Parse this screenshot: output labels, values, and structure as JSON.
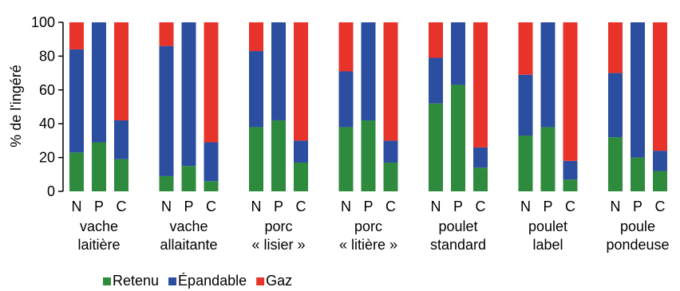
{
  "chart_data": {
    "type": "bar",
    "stacked": true,
    "ylabel": "% de l'ingéré",
    "ylim": [
      0,
      100
    ],
    "yticks": [
      0,
      20,
      40,
      60,
      80,
      100
    ],
    "series_names": [
      "Retenu",
      "Épandable",
      "Gaz"
    ],
    "colors": {
      "Retenu": "#2e8b3e",
      "Épandable": "#2b4ea0",
      "Gaz": "#e8332a"
    },
    "legend_position": "bottom-left",
    "bar_labels": [
      "N",
      "P",
      "C"
    ],
    "groups": [
      {
        "label": [
          "vache",
          "laitière"
        ],
        "bars": [
          {
            "label": "N",
            "Retenu": 23,
            "Épandable": 61,
            "Gaz": 16
          },
          {
            "label": "P",
            "Retenu": 29,
            "Épandable": 71,
            "Gaz": 0
          },
          {
            "label": "C",
            "Retenu": 19,
            "Épandable": 23,
            "Gaz": 58
          }
        ]
      },
      {
        "label": [
          "vache",
          "allaitante"
        ],
        "bars": [
          {
            "label": "N",
            "Retenu": 9,
            "Épandable": 77,
            "Gaz": 14
          },
          {
            "label": "P",
            "Retenu": 15,
            "Épandable": 85,
            "Gaz": 0
          },
          {
            "label": "C",
            "Retenu": 6,
            "Épandable": 23,
            "Gaz": 71
          }
        ]
      },
      {
        "label": [
          "porc",
          "« lisier »"
        ],
        "bars": [
          {
            "label": "N",
            "Retenu": 38,
            "Épandable": 45,
            "Gaz": 17
          },
          {
            "label": "P",
            "Retenu": 42,
            "Épandable": 58,
            "Gaz": 0
          },
          {
            "label": "C",
            "Retenu": 17,
            "Épandable": 13,
            "Gaz": 70
          }
        ]
      },
      {
        "label": [
          "porc",
          "« litière »"
        ],
        "bars": [
          {
            "label": "N",
            "Retenu": 38,
            "Épandable": 33,
            "Gaz": 29
          },
          {
            "label": "P",
            "Retenu": 42,
            "Épandable": 58,
            "Gaz": 0
          },
          {
            "label": "C",
            "Retenu": 17,
            "Épandable": 13,
            "Gaz": 70
          }
        ]
      },
      {
        "label": [
          "poulet",
          "standard"
        ],
        "bars": [
          {
            "label": "N",
            "Retenu": 52,
            "Épandable": 27,
            "Gaz": 21
          },
          {
            "label": "P",
            "Retenu": 63,
            "Épandable": 37,
            "Gaz": 0
          },
          {
            "label": "C",
            "Retenu": 14,
            "Épandable": 12,
            "Gaz": 74
          }
        ]
      },
      {
        "label": [
          "poulet",
          "label"
        ],
        "bars": [
          {
            "label": "N",
            "Retenu": 33,
            "Épandable": 36,
            "Gaz": 31
          },
          {
            "label": "P",
            "Retenu": 38,
            "Épandable": 62,
            "Gaz": 0
          },
          {
            "label": "C",
            "Retenu": 7,
            "Épandable": 11,
            "Gaz": 82
          }
        ]
      },
      {
        "label": [
          "poule",
          "pondeuse"
        ],
        "bars": [
          {
            "label": "N",
            "Retenu": 32,
            "Épandable": 38,
            "Gaz": 30
          },
          {
            "label": "P",
            "Retenu": 20,
            "Épandable": 80,
            "Gaz": 0
          },
          {
            "label": "C",
            "Retenu": 12,
            "Épandable": 12,
            "Gaz": 76
          }
        ]
      }
    ]
  }
}
